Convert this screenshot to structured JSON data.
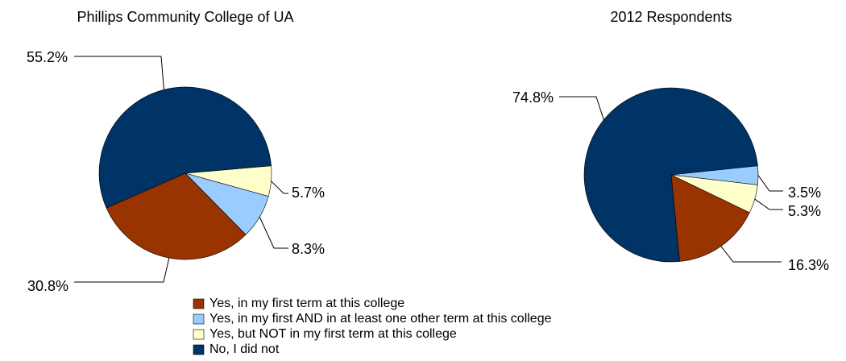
{
  "legend": {
    "categories": [
      "Yes, in my first term at this college",
      "Yes, in my first AND in at least one other term at this college",
      "Yes, but NOT in my first term at this college",
      "No, I did not"
    ],
    "colors": [
      "#993300",
      "#99ccff",
      "#ffffcc",
      "#003366"
    ]
  },
  "chart_data": [
    {
      "type": "pie",
      "title": "Phillips Community College of UA",
      "values": [
        30.8,
        8.3,
        5.7,
        55.2
      ],
      "value_labels": [
        "30.8%",
        "8.3%",
        "5.7%",
        "55.2%"
      ]
    },
    {
      "type": "pie",
      "title": "2012 Respondents",
      "values": [
        16.3,
        3.5,
        5.3,
        74.8
      ],
      "value_labels": [
        "16.3%",
        "3.5%",
        "5.3%",
        "74.8%"
      ]
    }
  ]
}
